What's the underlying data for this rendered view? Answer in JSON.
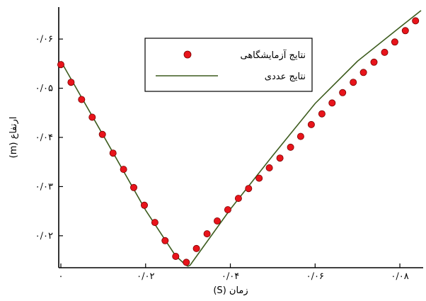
{
  "chart_data": {
    "type": "scatter",
    "xlabel": "زمان (S)",
    "ylabel": "ارتفاع (m)",
    "xlim": [
      -0.0005,
      0.0855
    ],
    "ylim": [
      0.0135,
      0.0665
    ],
    "x_ticks": [
      {
        "value": 0,
        "label": "۰"
      },
      {
        "value": 0.02,
        "label": "۰/۰۲"
      },
      {
        "value": 0.04,
        "label": "۰/۰۴"
      },
      {
        "value": 0.06,
        "label": "۰/۰۶"
      },
      {
        "value": 0.08,
        "label": "۰/۰۸"
      }
    ],
    "y_ticks": [
      {
        "value": 0.02,
        "label": "۰/۰۲"
      },
      {
        "value": 0.03,
        "label": "۰/۰۳"
      },
      {
        "value": 0.04,
        "label": "۰/۰۴"
      },
      {
        "value": 0.05,
        "label": "۰/۰۵"
      },
      {
        "value": 0.06,
        "label": "۰/۰۶"
      }
    ],
    "grid": false,
    "legend_position": "top-center",
    "series": [
      {
        "name": "نتایج آزمایشگاهی",
        "kind": "markers",
        "color": "#e8141b",
        "x": [
          0.0,
          0.0024,
          0.0049,
          0.0074,
          0.0098,
          0.0123,
          0.0148,
          0.0172,
          0.0197,
          0.0222,
          0.0246,
          0.0271,
          0.0296,
          0.032,
          0.0345,
          0.0369,
          0.0394,
          0.0419,
          0.0443,
          0.0468,
          0.0492,
          0.0517,
          0.0542,
          0.0566,
          0.0591,
          0.0616,
          0.064,
          0.0665,
          0.069,
          0.0714,
          0.0739,
          0.0764,
          0.0788,
          0.0813,
          0.0837
        ],
        "y": [
          0.0548,
          0.0512,
          0.0477,
          0.0441,
          0.0406,
          0.0368,
          0.0335,
          0.0298,
          0.0262,
          0.0227,
          0.019,
          0.0158,
          0.0146,
          0.0174,
          0.0204,
          0.023,
          0.0253,
          0.0276,
          0.0296,
          0.0317,
          0.0338,
          0.0358,
          0.038,
          0.0402,
          0.0426,
          0.0448,
          0.047,
          0.0491,
          0.0512,
          0.0532,
          0.0553,
          0.0573,
          0.0594,
          0.0617,
          0.0637
        ]
      },
      {
        "name": "نتایج عددی",
        "kind": "line",
        "color": "#3d5c1e",
        "x": [
          0.0,
          0.01,
          0.02,
          0.027,
          0.0295,
          0.03,
          0.0305,
          0.032,
          0.04,
          0.05,
          0.06,
          0.07,
          0.08,
          0.085
        ],
        "y": [
          0.0555,
          0.0404,
          0.0252,
          0.016,
          0.014,
          0.0138,
          0.014,
          0.0158,
          0.0254,
          0.0363,
          0.0469,
          0.0555,
          0.0624,
          0.0658
        ]
      }
    ]
  }
}
